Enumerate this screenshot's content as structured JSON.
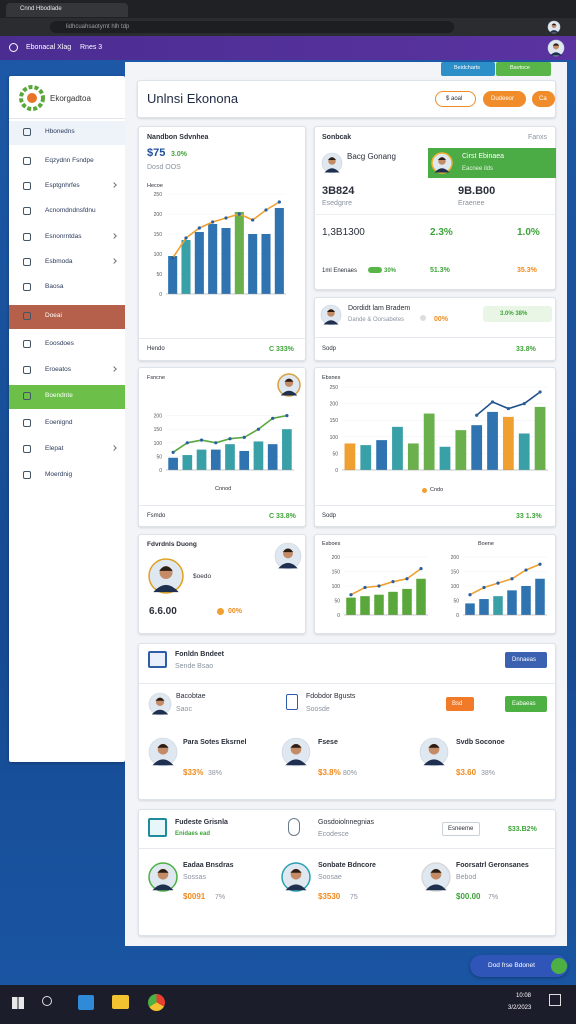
{
  "browser": {
    "tab": "Cnnd Hbodlade",
    "url": "lidhcuahsaotyrnt hlh tdp"
  },
  "appbar": {
    "title": "Ebonacal Xlag",
    "badge": "Rnes 3"
  },
  "sidebar": {
    "brand": "Ekorgadtoa",
    "items": [
      "Hbonedns",
      "Eqzydnn Fsndpe",
      "Esptgnhrfes",
      "Acnomdndnsfdnu",
      "Esnonrntdas",
      "Esbmoda",
      "Baosa",
      "Doeai",
      "Eoosdoes",
      "Eroeatos",
      "Boendnte",
      "Eoenignd",
      "Elepat",
      "Moerdnig"
    ]
  },
  "header": {
    "title": "Unlnsi Ekonona",
    "top_buttons": [
      "Beidcharts",
      "Bavtoce"
    ],
    "buttons": [
      "$ aoal",
      "Dudeeor",
      "Ca"
    ]
  },
  "cards": [
    {
      "title": "Nandbon Sdvnhea",
      "stat": "$75",
      "change": "3.0%",
      "sub": "Dosd OOS",
      "legend": "Hecoe",
      "footer": "Hendo",
      "footer_value": "C 333%",
      "chart": {
        "type": "bar",
        "values": [
          95,
          135,
          155,
          175,
          165,
          205,
          150,
          150,
          215
        ],
        "colors": [
          "#2f73b0",
          "#3aa0a8",
          "#2f73b0",
          "#2f73b0",
          "#2f73b0",
          "#6ab04c",
          "#2f73b0",
          "#2f73b0",
          "#2f73b0"
        ],
        "line": [
          90,
          140,
          165,
          180,
          190,
          200,
          185,
          210,
          230
        ],
        "line_color": "#f0a030",
        "ylim": [
          0,
          250
        ],
        "yticks": [
          0,
          50,
          100,
          150,
          200,
          250
        ]
      }
    },
    {
      "title": "Sonbcak",
      "tag": "Fanxs",
      "people": [
        {
          "name": "Bacg Gonang"
        },
        {
          "name": "Cirst Ebinaea",
          "role": "Eacnee ilds"
        }
      ],
      "stats": [
        {
          "value": "3B824",
          "label": "Esedgnre"
        },
        {
          "value": "9B.B00",
          "label": "Eraenee"
        }
      ],
      "row": [
        "1,3B1300",
        "2.3%",
        "1.0%"
      ],
      "bottom": {
        "label": "1ml Enenaes",
        "bar": "30%",
        "values": [
          "51.3%",
          "35.3%"
        ]
      }
    },
    {
      "name": "Dordidt lam Bradem",
      "role": "Dande & Oorsabetes",
      "value": "00%",
      "chip": "3.0% 38%",
      "footer": "Sodp",
      "footer_value": "33.8%"
    },
    {
      "title": "Fsncne",
      "axis_label": "Cnnod",
      "footer": "Fsmdo",
      "footer_value": "C 33.8%",
      "chart": {
        "type": "bar",
        "values": [
          45,
          55,
          75,
          75,
          95,
          70,
          105,
          95,
          150
        ],
        "colors": [
          "#2f73b0",
          "#3aa0a8",
          "#3aa0a8",
          "#2f73b0",
          "#3aa0a8",
          "#2f73b0",
          "#3aa0a8",
          "#2f73b0",
          "#3aa0a8"
        ],
        "line": [
          65,
          100,
          110,
          100,
          115,
          120,
          150,
          190,
          200
        ],
        "line_color": "#5aa83c",
        "ylim": [
          0,
          250
        ],
        "yticks": [
          0,
          50,
          100,
          150,
          200
        ]
      }
    },
    {
      "title": "Ebsnes",
      "legend": "Cndo",
      "chart": {
        "type": "bar",
        "values": [
          80,
          75,
          90,
          130,
          80,
          170,
          70,
          120,
          135,
          175,
          160,
          110,
          190
        ],
        "colors": [
          "#f0a030",
          "#3aa0a8",
          "#2f73b0",
          "#3aa0a8",
          "#6ab04c",
          "#6ab04c",
          "#3aa0a8",
          "#6ab04c",
          "#2f73b0",
          "#2f73b0",
          "#f0a030",
          "#3aa0a8",
          "#6ab04c"
        ],
        "line": [
          null,
          null,
          null,
          null,
          null,
          null,
          null,
          null,
          165,
          205,
          185,
          200,
          235
        ],
        "line_color": "#1f4f8a",
        "ylim": [
          0,
          250
        ],
        "yticks": [
          0,
          50,
          100,
          150,
          200,
          250
        ]
      },
      "footer": "Sodp",
      "footer_value": "33 1.3%"
    },
    {
      "title": "Fdvrdnls Duong",
      "sub": "$oedo",
      "value": "6.6.00",
      "change": "00%"
    },
    {
      "title": "Esboes",
      "tag": "Boene",
      "charts": [
        {
          "type": "bar",
          "values": [
            60,
            65,
            70,
            80,
            90,
            125
          ],
          "colors": [
            "#5aa83c",
            "#5aa83c",
            "#5aa83c",
            "#5aa83c",
            "#5aa83c",
            "#5aa83c"
          ],
          "line": [
            70,
            95,
            100,
            115,
            125,
            160
          ],
          "line_color": "#f0a030",
          "ylim": [
            0,
            200
          ],
          "yticks": [
            0,
            50,
            100,
            150,
            200
          ]
        },
        {
          "type": "bar",
          "values": [
            40,
            55,
            65,
            85,
            100,
            125
          ],
          "colors": [
            "#2f73b0",
            "#2f73b0",
            "#3aa0a8",
            "#2f73b0",
            "#2f73b0",
            "#2f73b0"
          ],
          "line": [
            70,
            95,
            110,
            125,
            155,
            175
          ],
          "line_color": "#f0a030",
          "ylim": [
            0,
            200
          ],
          "yticks": [
            0,
            50,
            100,
            150,
            200
          ]
        }
      ]
    },
    {
      "title": "Fonldn Bndeet",
      "sub": "Sende Bsao",
      "button": "Dnnaeas",
      "items": [
        {
          "name": "Bacobtae",
          "sub": "Saoc"
        },
        {
          "name": "Fdobdor Bgusts",
          "sub": "Soosde",
          "tag": "Bsd",
          "button": "Eabaeas"
        }
      ],
      "people": [
        {
          "name": "Para Sotes Eksrnel",
          "value": "$33%",
          "change": "38%"
        },
        {
          "name": "Fsese",
          "value": "$3.8%",
          "change": "80%"
        },
        {
          "name": "Svdb Soconoe",
          "value": "$3.60",
          "change": "38%"
        }
      ]
    },
    {
      "title": "Fudeste Grisnla",
      "sub": "Enidaes ead",
      "item": {
        "name": "Gosdoiolnnegnias",
        "sub": "Ecodesce"
      },
      "button": "Esneeme",
      "value": "$33.B2%",
      "people": [
        {
          "name": "Eadaa Bnsdras",
          "sub": "Sossas",
          "value": "$0091",
          "change": "7%"
        },
        {
          "name": "Sonbate Bdncore",
          "sub": "Soosae",
          "value": "$3530",
          "change": "75"
        },
        {
          "name": "Foorsatrl Geronsanes",
          "sub": "Bebod",
          "value": "$00.00",
          "change": "7%"
        }
      ]
    }
  ],
  "fab": "Dod frse Bdonet",
  "taskbar": {
    "time": "10:08",
    "date": "3/2/2023"
  }
}
